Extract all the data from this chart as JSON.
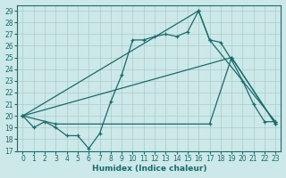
{
  "xlabel": "Humidex (Indice chaleur)",
  "bg_color": "#cce8e8",
  "grid_color": "#aacccc",
  "line_color": "#1a6b6b",
  "xlim": [
    -0.5,
    23.5
  ],
  "ylim": [
    17,
    29.5
  ],
  "yticks": [
    17,
    18,
    19,
    20,
    21,
    22,
    23,
    24,
    25,
    26,
    27,
    28,
    29
  ],
  "xticks": [
    0,
    1,
    2,
    3,
    4,
    5,
    6,
    7,
    8,
    9,
    10,
    11,
    12,
    13,
    14,
    15,
    16,
    17,
    18,
    19,
    20,
    21,
    22,
    23
  ],
  "line1_x": [
    0,
    1,
    2,
    3,
    4,
    5,
    6,
    7,
    8,
    9,
    10,
    11,
    12,
    13,
    14,
    15,
    16,
    17,
    18,
    19,
    20,
    21,
    22,
    23
  ],
  "line1_y": [
    20.0,
    19.0,
    19.5,
    19.0,
    18.3,
    18.3,
    17.2,
    18.5,
    21.2,
    23.5,
    26.5,
    26.5,
    26.8,
    27.0,
    26.8,
    27.2,
    29.0,
    26.5,
    26.3,
    24.8,
    23.0,
    21.0,
    19.5,
    19.5
  ],
  "line2_x": [
    0,
    16,
    17,
    23
  ],
  "line2_y": [
    20.0,
    29.0,
    26.5,
    19.5
  ],
  "line3_x": [
    0,
    3,
    17,
    19,
    23
  ],
  "line3_y": [
    20.0,
    19.3,
    19.3,
    25.0,
    19.3
  ],
  "line4_x": [
    0,
    19,
    23
  ],
  "line4_y": [
    20.0,
    25.0,
    19.3
  ]
}
